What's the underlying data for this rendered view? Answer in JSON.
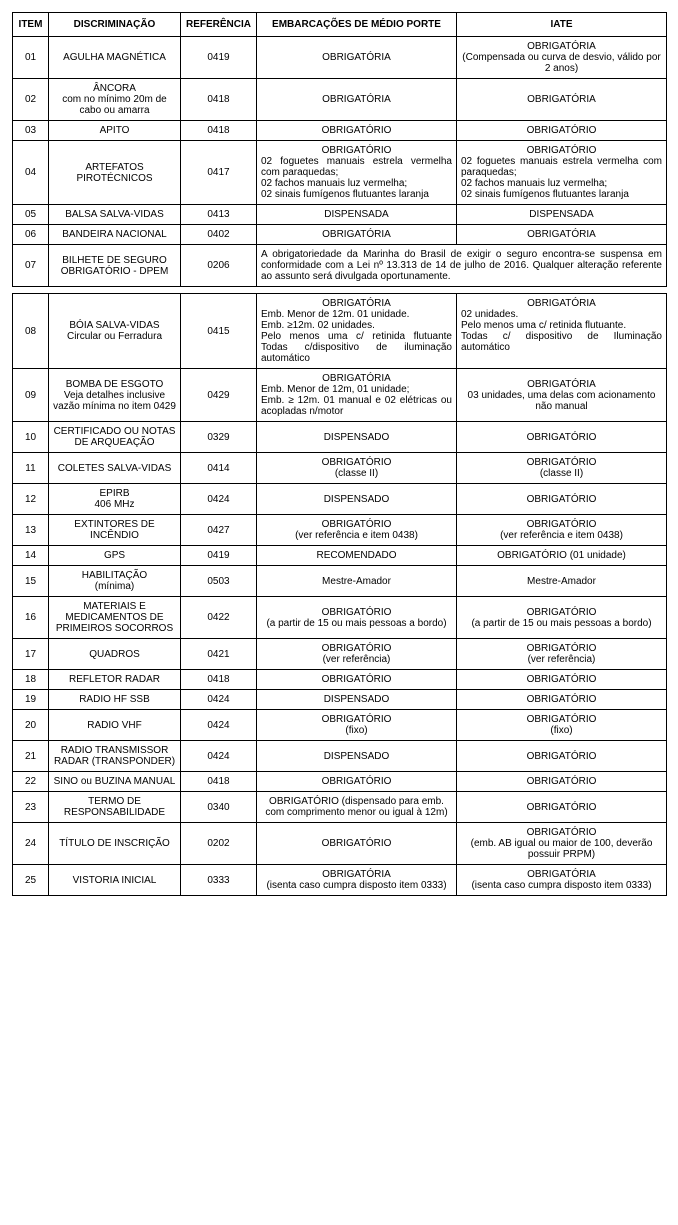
{
  "headers": {
    "item": "ITEM",
    "disc": "DISCRIMINAÇÃO",
    "ref": "REFERÊNCIA",
    "emb": "EMBARCAÇÕES DE MÉDIO PORTE",
    "iate": "IATE"
  },
  "rows": {
    "r01": {
      "item": "01",
      "disc": "AGULHA MAGNÉTICA",
      "ref": "0419",
      "emb": "OBRIGATÓRIA",
      "iate_lead": "OBRIGATÓRIA",
      "iate_sub": "(Compensada ou curva de desvio, válido por 2 anos)"
    },
    "r02": {
      "item": "02",
      "disc_lead": "ÂNCORA",
      "disc_sub": "com no mínimo 20m de cabo ou amarra",
      "ref": "0418",
      "emb": "OBRIGATÓRIA",
      "iate": "OBRIGATÓRIA"
    },
    "r03": {
      "item": "03",
      "disc": "APITO",
      "ref": "0418",
      "emb": "OBRIGATÓRIO",
      "iate": "OBRIGATÓRIO"
    },
    "r04": {
      "item": "04",
      "disc": "ARTEFATOS PIROTÉCNICOS",
      "ref": "0417",
      "emb_lead": "OBRIGATÓRIO",
      "emb_body": "02 foguetes manuais estrela vermelha com paraquedas;\n02 fachos manuais luz vermelha;\n02 sinais fumígenos flutuantes laranja",
      "iate_lead": "OBRIGATÓRIO",
      "iate_body": "02 foguetes manuais estrela vermelha com paraquedas;\n02 fachos manuais luz vermelha;\n02 sinais fumígenos flutuantes laranja"
    },
    "r05": {
      "item": "05",
      "disc": "BALSA SALVA-VIDAS",
      "ref": "0413",
      "emb": "DISPENSADA",
      "iate": "DISPENSADA"
    },
    "r06": {
      "item": "06",
      "disc": "BANDEIRA NACIONAL",
      "ref": "0402",
      "emb": "OBRIGATÓRIA",
      "iate": "OBRIGATÓRIA"
    },
    "r07": {
      "item": "07",
      "disc": "BILHETE DE SEGURO OBRIGATÓRIO - DPEM",
      "ref": "0206",
      "merged": "A obrigatoriedade da Marinha do Brasil de exigir o seguro encontra-se suspensa em conformidade com a Lei nº 13.313 de 14 de julho de 2016. Qualquer alteração referente ao assunto será divulgada oportunamente."
    },
    "r08": {
      "item": "08",
      "disc_lead": "BÓIA SALVA-VIDAS",
      "disc_sub": "Circular ou Ferradura",
      "ref": "0415",
      "emb_lead": "OBRIGATÓRIA",
      "emb_body": "Emb. Menor de 12m. 01 unidade.\nEmb. ≥12m. 02 unidades.\nPelo menos uma c/ retinida flutuante Todas c/dispositivo de iluminação automático",
      "iate_lead": "OBRIGATÓRIA",
      "iate_body": "02 unidades.\nPelo menos uma c/ retinida flutuante.\nTodas c/ dispositivo de Iluminação automático"
    },
    "r09": {
      "item": "09",
      "disc_lead": "BOMBA DE ESGOTO",
      "disc_sub": "Veja detalhes inclusive vazão mínima no item 0429",
      "ref": "0429",
      "emb_lead": "OBRIGATÓRIA",
      "emb_body": "Emb. Menor de 12m, 01 unidade;\nEmb. ≥ 12m. 01 manual e 02 elétricas ou acopladas n/motor",
      "iate_lead": "OBRIGATÓRIA",
      "iate_sub": "03 unidades, uma delas com acionamento não manual"
    },
    "r10": {
      "item": "10",
      "disc": "CERTIFICADO OU NOTAS DE ARQUEAÇÃO",
      "ref": "0329",
      "emb": "DISPENSADO",
      "iate": "OBRIGATÓRIO"
    },
    "r11": {
      "item": "11",
      "disc": "COLETES SALVA-VIDAS",
      "ref": "0414",
      "emb_lead": "OBRIGATÓRIO",
      "emb_sub": "(classe II)",
      "iate_lead": "OBRIGATÓRIO",
      "iate_sub": "(classe II)"
    },
    "r12": {
      "item": "12",
      "disc_lead": "EPIRB",
      "disc_sub": "406 MHz",
      "ref": "0424",
      "emb": "DISPENSADO",
      "iate": "OBRIGATÓRIO"
    },
    "r13": {
      "item": "13",
      "disc": "EXTINTORES DE INCÊNDIO",
      "ref": "0427",
      "emb_lead": "OBRIGATÓRIO",
      "emb_sub": "(ver referência e item 0438)",
      "iate_lead": "OBRIGATÓRIO",
      "iate_sub": "(ver referência e item 0438)"
    },
    "r14": {
      "item": "14",
      "disc": "GPS",
      "ref": "0419",
      "emb": "RECOMENDADO",
      "iate": "OBRIGATÓRIO  (01 unidade)"
    },
    "r15": {
      "item": "15",
      "disc_lead": "HABILITAÇÃO",
      "disc_sub": "(mínima)",
      "ref": "0503",
      "emb": "Mestre-Amador",
      "iate": "Mestre-Amador"
    },
    "r16": {
      "item": "16",
      "disc": "MATERIAIS E MEDICAMENTOS DE PRIMEIROS SOCORROS",
      "ref": "0422",
      "emb_lead": "OBRIGATÓRIO",
      "emb_sub": "(a partir de 15 ou mais pessoas a bordo)",
      "iate_lead": "OBRIGATÓRIO",
      "iate_sub": "(a partir de 15 ou mais pessoas a bordo)"
    },
    "r17": {
      "item": "17",
      "disc": "QUADROS",
      "ref": "0421",
      "emb_lead": "OBRIGATÓRIO",
      "emb_sub": "(ver referência)",
      "iate_lead": "OBRIGATÓRIO",
      "iate_sub": "(ver referência)"
    },
    "r18": {
      "item": "18",
      "disc": "REFLETOR RADAR",
      "ref": "0418",
      "emb": "OBRIGATÓRIO",
      "iate": "OBRIGATÓRIO"
    },
    "r19": {
      "item": "19",
      "disc": "RADIO HF SSB",
      "ref": "0424",
      "emb": "DISPENSADO",
      "iate": "OBRIGATÓRIO"
    },
    "r20": {
      "item": "20",
      "disc": "RADIO VHF",
      "ref": "0424",
      "emb_lead": "OBRIGATÓRIO",
      "emb_sub": "(fixo)",
      "iate_lead": "OBRIGATÓRIO",
      "iate_sub": "(fixo)"
    },
    "r21": {
      "item": "21",
      "disc": "RADIO TRANSMISSOR RADAR (TRANSPONDER)",
      "ref": "0424",
      "emb": "DISPENSADO",
      "iate": "OBRIGATÓRIO"
    },
    "r22": {
      "item": "22",
      "disc": "SINO ou BUZINA MANUAL",
      "ref": "0418",
      "emb": "OBRIGATÓRIO",
      "iate": "OBRIGATÓRIO"
    },
    "r23": {
      "item": "23",
      "disc": "TERMO DE RESPONSABILIDADE",
      "ref": "0340",
      "emb": "OBRIGATÓRIO (dispensado para emb. com comprimento menor ou igual à 12m)",
      "iate": "OBRIGATÓRIO"
    },
    "r24": {
      "item": "24",
      "disc": "TÍTULO DE INSCRIÇÃO",
      "ref": "0202",
      "emb": "OBRIGATÓRIO",
      "iate_lead": "OBRIGATÓRIO",
      "iate_sub": "(emb. AB igual ou maior de 100, deverão possuir PRPM)"
    },
    "r25": {
      "item": "25",
      "disc": "VISTORIA INICIAL",
      "ref": "0333",
      "emb_lead": "OBRIGATÓRIA",
      "emb_sub": "(isenta caso cumpra disposto item 0333)",
      "iate_lead": "OBRIGATÓRIA",
      "iate_sub": "(isenta caso cumpra disposto item 0333)"
    }
  }
}
